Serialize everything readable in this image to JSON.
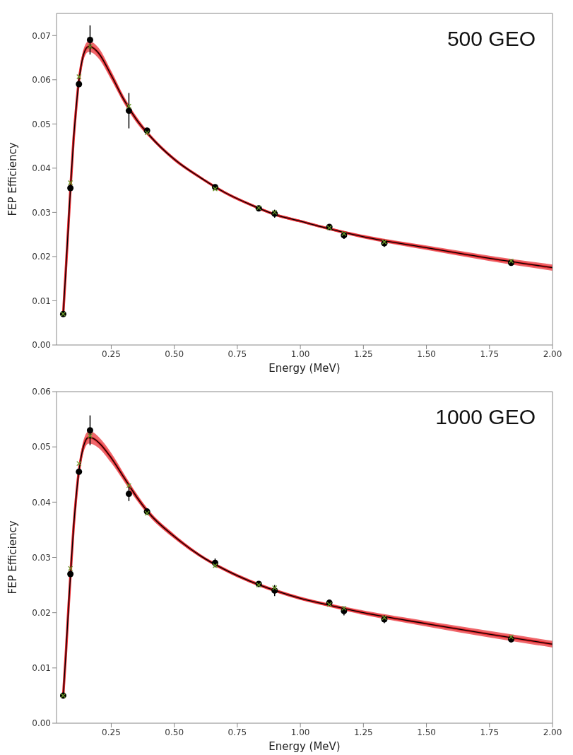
{
  "chart_data": [
    {
      "type": "line",
      "xlabel": "Energy (MeV)",
      "ylabel": "FEP Efficiency",
      "annotations": [
        "500 GEO"
      ],
      "xlim": [
        0.033,
        2.0
      ],
      "ylim": [
        0,
        0.075
      ],
      "xticks": [
        0.25,
        {
          "value": 0.5,
          "label": "0.50"
        },
        0.75,
        {
          "value": 1,
          "label": "1.00"
        },
        1.25,
        {
          "value": 1.5,
          "label": "1.50"
        },
        1.75,
        {
          "value": 2,
          "label": "2.00"
        }
      ],
      "yticks": [
        {
          "value": 0,
          "label": "0.00"
        },
        0.01,
        0.02,
        0.03,
        0.04,
        0.05,
        0.06,
        0.07
      ],
      "series": [
        {
          "type": "line",
          "color": "#e8262c",
          "marker": "none",
          "x": [
            0.0595,
            0.07,
            0.08,
            0.09,
            0.1,
            0.11,
            0.12,
            0.13,
            0.145,
            0.16,
            0.175,
            0.2,
            0.25,
            0.3,
            0.35,
            0.4,
            0.5,
            0.6,
            0.7,
            0.8,
            0.9,
            1.0,
            1.1,
            1.25,
            1.5,
            1.75,
            2.0
          ],
          "values": [
            0.007,
            0.017,
            0.027,
            0.037,
            0.046,
            0.053,
            0.059,
            0.063,
            0.0665,
            0.0675,
            0.0673,
            0.066,
            0.061,
            0.0555,
            0.051,
            0.0475,
            0.042,
            0.038,
            0.0345,
            0.0318,
            0.0295,
            0.028,
            0.0265,
            0.0245,
            0.022,
            0.0196,
            0.0175
          ],
          "lower": [
            0.0068,
            0.0166,
            0.0264,
            0.0362,
            0.045,
            0.0519,
            0.0578,
            0.0618,
            0.0653,
            0.0663,
            0.0661,
            0.0648,
            0.06,
            0.0547,
            0.0503,
            0.047,
            0.0416,
            0.0377,
            0.0342,
            0.0315,
            0.0292,
            0.0277,
            0.0262,
            0.0241,
            0.0215,
            0.019,
            0.0168
          ],
          "upper": [
            0.0072,
            0.0174,
            0.0276,
            0.0378,
            0.047,
            0.0541,
            0.0602,
            0.0642,
            0.0677,
            0.0687,
            0.0685,
            0.0672,
            0.062,
            0.0563,
            0.0517,
            0.048,
            0.0424,
            0.0383,
            0.0348,
            0.0321,
            0.0298,
            0.0283,
            0.0268,
            0.0249,
            0.0225,
            0.0202,
            0.0182
          ]
        },
        {
          "type": "line",
          "color": "#000000",
          "marker": "none",
          "x": [
            0.0595,
            0.07,
            0.08,
            0.09,
            0.1,
            0.11,
            0.12,
            0.13,
            0.145,
            0.16,
            0.175,
            0.2,
            0.25,
            0.3,
            0.35,
            0.4,
            0.5,
            0.6,
            0.7,
            0.8,
            0.9,
            1.0,
            1.1,
            1.25,
            1.5,
            1.75,
            2.0
          ],
          "values": [
            0.007,
            0.017,
            0.027,
            0.037,
            0.046,
            0.053,
            0.059,
            0.063,
            0.0665,
            0.0675,
            0.0673,
            0.066,
            0.061,
            0.0555,
            0.051,
            0.0475,
            0.042,
            0.038,
            0.0345,
            0.0318,
            0.0295,
            0.028,
            0.0265,
            0.0245,
            0.022,
            0.0196,
            0.0175
          ]
        },
        {
          "type": "scatter",
          "color": "#000000",
          "marker": "circle",
          "x": [
            0.0595,
            0.088,
            0.122,
            0.166,
            0.32,
            0.392,
            0.662,
            0.835,
            0.898,
            1.115,
            1.173,
            1.333,
            1.836
          ],
          "values": [
            0.007,
            0.0355,
            0.059,
            0.069,
            0.053,
            0.0485,
            0.0357,
            0.0309,
            0.0297,
            0.0267,
            0.0248,
            0.023,
            0.0186
          ],
          "errors": [
            null,
            null,
            null,
            0.0033,
            0.004,
            null,
            0.0006,
            null,
            0.0009,
            0.0005,
            0.0008,
            0.0008,
            0.0006
          ]
        },
        {
          "type": "scatter",
          "color": "#6b9a2a",
          "marker": "cross",
          "x": [
            0.0595,
            0.088,
            0.122,
            0.166,
            0.32,
            0.392,
            0.662,
            0.835,
            0.898,
            1.115,
            1.173,
            1.333,
            1.836
          ],
          "values": [
            0.007,
            0.0367,
            0.0607,
            0.0675,
            0.054,
            0.048,
            0.0353,
            0.031,
            0.03,
            0.0265,
            0.0252,
            0.0233,
            0.019
          ]
        }
      ]
    },
    {
      "type": "line",
      "xlabel": "Energy (MeV)",
      "ylabel": "FEP Efficiency",
      "annotations": [
        "1000 GEO"
      ],
      "xlim": [
        0.033,
        2.0
      ],
      "ylim": [
        0,
        0.06
      ],
      "xticks": [
        0.25,
        {
          "value": 0.5,
          "label": "0.50"
        },
        0.75,
        {
          "value": 1,
          "label": "1.00"
        },
        1.25,
        {
          "value": 1.5,
          "label": "1.50"
        },
        1.75,
        {
          "value": 2,
          "label": "2.00"
        }
      ],
      "yticks": [
        {
          "value": 0,
          "label": "0.00"
        },
        0.01,
        0.02,
        0.03,
        0.04,
        0.05,
        0.06
      ],
      "series": [
        {
          "type": "line",
          "color": "#e8262c",
          "marker": "none",
          "x": [
            0.0595,
            0.07,
            0.08,
            0.09,
            0.1,
            0.11,
            0.12,
            0.13,
            0.145,
            0.16,
            0.175,
            0.2,
            0.25,
            0.3,
            0.35,
            0.4,
            0.5,
            0.6,
            0.7,
            0.8,
            0.9,
            1.0,
            1.1,
            1.25,
            1.5,
            1.75,
            2.0
          ],
          "values": [
            0.005,
            0.0125,
            0.0205,
            0.028,
            0.035,
            0.0405,
            0.045,
            0.048,
            0.0508,
            0.0517,
            0.0516,
            0.0508,
            0.048,
            0.0445,
            0.041,
            0.038,
            0.0338,
            0.0304,
            0.0278,
            0.0257,
            0.024,
            0.0226,
            0.0215,
            0.02,
            0.018,
            0.0161,
            0.0143
          ],
          "lower": [
            0.0048,
            0.0121,
            0.0199,
            0.0272,
            0.0341,
            0.0396,
            0.044,
            0.047,
            0.0497,
            0.0506,
            0.0505,
            0.0498,
            0.0471,
            0.0438,
            0.0404,
            0.0375,
            0.0334,
            0.0301,
            0.0275,
            0.0254,
            0.0237,
            0.0223,
            0.0212,
            0.0196,
            0.0175,
            0.0155,
            0.0137
          ],
          "upper": [
            0.0052,
            0.0129,
            0.0211,
            0.0288,
            0.0359,
            0.0414,
            0.046,
            0.049,
            0.0519,
            0.0528,
            0.0527,
            0.0518,
            0.0489,
            0.0452,
            0.0416,
            0.0385,
            0.0342,
            0.0307,
            0.0281,
            0.026,
            0.0243,
            0.0229,
            0.0218,
            0.0204,
            0.0185,
            0.0167,
            0.0149
          ]
        },
        {
          "type": "line",
          "color": "#000000",
          "marker": "none",
          "x": [
            0.0595,
            0.07,
            0.08,
            0.09,
            0.1,
            0.11,
            0.12,
            0.13,
            0.145,
            0.16,
            0.175,
            0.2,
            0.25,
            0.3,
            0.35,
            0.4,
            0.5,
            0.6,
            0.7,
            0.8,
            0.9,
            1.0,
            1.1,
            1.25,
            1.5,
            1.75,
            2.0
          ],
          "values": [
            0.005,
            0.0125,
            0.0205,
            0.028,
            0.035,
            0.0405,
            0.045,
            0.048,
            0.0508,
            0.0517,
            0.0516,
            0.0508,
            0.048,
            0.0445,
            0.041,
            0.038,
            0.0338,
            0.0304,
            0.0278,
            0.0257,
            0.024,
            0.0226,
            0.0215,
            0.02,
            0.018,
            0.0161,
            0.0143
          ]
        },
        {
          "type": "scatter",
          "color": "#000000",
          "marker": "circle",
          "x": [
            0.0595,
            0.088,
            0.122,
            0.166,
            0.32,
            0.392,
            0.662,
            0.835,
            0.898,
            1.115,
            1.173,
            1.333,
            1.836
          ],
          "values": [
            0.005,
            0.027,
            0.0455,
            0.053,
            0.0415,
            0.0383,
            0.029,
            0.0252,
            0.024,
            0.0218,
            0.0203,
            0.0188,
            0.0152
          ],
          "errors": [
            null,
            null,
            null,
            0.0027,
            0.0013,
            0.0006,
            0.0008,
            null,
            0.001,
            0.0005,
            0.0008,
            0.0007,
            0.0006
          ]
        },
        {
          "type": "scatter",
          "color": "#6b9a2a",
          "marker": "cross",
          "x": [
            0.0595,
            0.088,
            0.122,
            0.166,
            0.32,
            0.392,
            0.662,
            0.835,
            0.898,
            1.115,
            1.173,
            1.333,
            1.836
          ],
          "values": [
            0.005,
            0.028,
            0.047,
            0.052,
            0.043,
            0.038,
            0.0285,
            0.025,
            0.0245,
            0.0215,
            0.0208,
            0.0191,
            0.0156
          ]
        }
      ]
    }
  ]
}
